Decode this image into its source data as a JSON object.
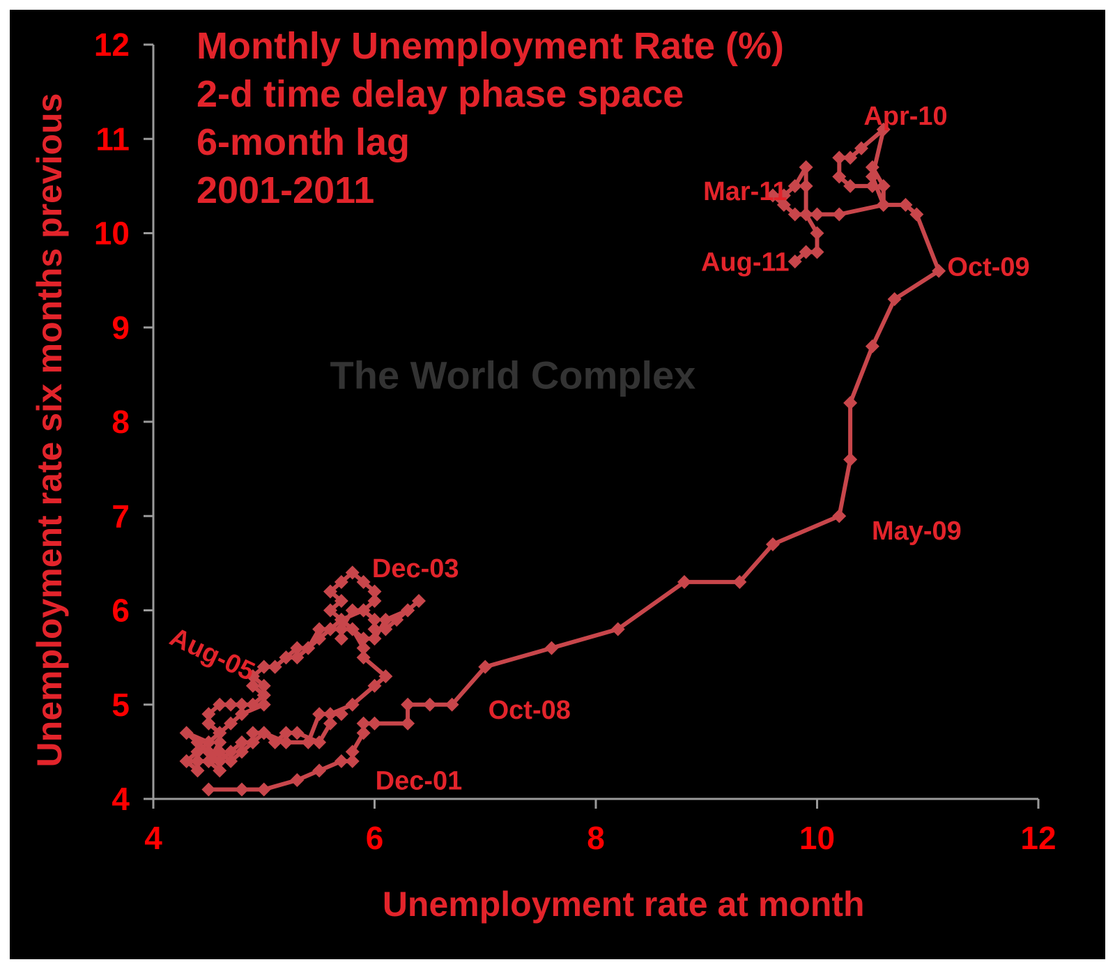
{
  "chart_data": {
    "type": "line",
    "title_lines": [
      "Monthly Unemployment Rate (%)",
      "2-d time delay phase space",
      "6-month lag",
      "2001-2011"
    ],
    "xlabel": "Unemployment rate at month",
    "ylabel": "Unemployment rate six months previous",
    "xlim": [
      4,
      12
    ],
    "ylim": [
      4,
      12
    ],
    "xticks": [
      "4",
      "6",
      "8",
      "10",
      "12"
    ],
    "yticks": [
      "4",
      "5",
      "6",
      "7",
      "8",
      "9",
      "10",
      "11",
      "12"
    ],
    "watermark": "The World Complex",
    "grid": false,
    "legend": "none",
    "colors": {
      "background": "#000000",
      "series": "#c8464b",
      "text": "#e3242b",
      "tick_text": "#ff0000",
      "axis": "#9a9a9a",
      "watermark": "#333333"
    },
    "series": [
      {
        "points": [
          [
            4.5,
            4.1
          ],
          [
            4.8,
            4.1
          ],
          [
            5.0,
            4.1
          ],
          [
            5.3,
            4.2
          ],
          [
            5.5,
            4.3
          ],
          [
            5.7,
            4.4
          ],
          [
            5.8,
            4.4
          ],
          [
            5.8,
            4.5
          ],
          [
            5.9,
            4.7
          ],
          [
            5.9,
            4.8
          ],
          [
            6.0,
            4.8
          ],
          [
            6.3,
            4.8
          ],
          [
            6.3,
            5.0
          ],
          [
            6.5,
            5.0
          ],
          [
            6.7,
            5.0
          ],
          [
            7.0,
            5.4
          ],
          [
            7.6,
            5.6
          ],
          [
            8.2,
            5.8
          ],
          [
            8.8,
            6.3
          ],
          [
            9.3,
            6.3
          ],
          [
            9.6,
            6.7
          ],
          [
            10.2,
            7.0
          ],
          [
            10.3,
            7.6
          ],
          [
            10.3,
            8.2
          ],
          [
            10.5,
            8.8
          ],
          [
            10.7,
            9.3
          ],
          [
            11.1,
            9.6
          ],
          [
            10.9,
            10.2
          ],
          [
            10.8,
            10.3
          ],
          [
            10.6,
            10.3
          ],
          [
            10.5,
            10.6
          ],
          [
            10.6,
            11.1
          ],
          [
            10.4,
            10.9
          ],
          [
            10.3,
            10.8
          ],
          [
            10.2,
            10.8
          ],
          [
            10.2,
            10.6
          ],
          [
            10.3,
            10.5
          ],
          [
            10.5,
            10.5
          ],
          [
            10.5,
            10.7
          ],
          [
            10.6,
            10.5
          ],
          [
            10.6,
            10.3
          ],
          [
            10.2,
            10.2
          ],
          [
            10.0,
            10.2
          ],
          [
            9.8,
            10.2
          ],
          [
            9.7,
            10.3
          ],
          [
            9.6,
            10.4
          ],
          [
            9.7,
            10.4
          ],
          [
            9.8,
            10.5
          ],
          [
            9.9,
            10.7
          ],
          [
            9.9,
            10.5
          ],
          [
            9.9,
            10.2
          ],
          [
            10.0,
            10.0
          ],
          [
            10.0,
            9.8
          ],
          [
            9.9,
            9.8
          ],
          [
            9.8,
            9.7
          ]
        ]
      },
      {
        "points": [
          [
            5.7,
            4.9
          ],
          [
            5.5,
            4.9
          ],
          [
            5.4,
            4.6
          ],
          [
            5.2,
            4.6
          ],
          [
            5.0,
            4.7
          ],
          [
            4.9,
            4.6
          ],
          [
            4.8,
            4.6
          ],
          [
            4.7,
            4.5
          ],
          [
            4.6,
            4.4
          ],
          [
            4.5,
            4.4
          ],
          [
            4.4,
            4.4
          ],
          [
            4.3,
            4.4
          ],
          [
            4.4,
            4.5
          ],
          [
            4.5,
            4.6
          ],
          [
            4.3,
            4.7
          ],
          [
            4.4,
            4.6
          ],
          [
            4.5,
            4.5
          ],
          [
            4.6,
            4.4
          ],
          [
            4.6,
            4.3
          ],
          [
            4.5,
            4.4
          ],
          [
            4.6,
            4.6
          ],
          [
            4.6,
            4.7
          ],
          [
            4.5,
            4.8
          ],
          [
            4.5,
            4.9
          ],
          [
            4.6,
            5.0
          ],
          [
            4.7,
            5.0
          ],
          [
            4.8,
            5.0
          ],
          [
            4.9,
            5.0
          ],
          [
            5.0,
            5.1
          ],
          [
            5.0,
            5.2
          ],
          [
            4.9,
            5.3
          ],
          [
            5.0,
            5.4
          ],
          [
            5.1,
            5.4
          ],
          [
            5.2,
            5.5
          ],
          [
            5.3,
            5.6
          ],
          [
            5.4,
            5.6
          ],
          [
            5.5,
            5.7
          ],
          [
            5.6,
            5.8
          ],
          [
            5.7,
            5.8
          ],
          [
            5.8,
            6.0
          ],
          [
            5.9,
            6.0
          ],
          [
            6.0,
            5.9
          ],
          [
            6.0,
            5.8
          ],
          [
            6.1,
            5.8
          ],
          [
            6.2,
            5.9
          ],
          [
            6.3,
            6.0
          ],
          [
            6.4,
            6.1
          ],
          [
            6.3,
            6.0
          ],
          [
            6.1,
            5.9
          ],
          [
            6.0,
            5.7
          ],
          [
            5.9,
            5.7
          ],
          [
            5.8,
            5.8
          ],
          [
            5.7,
            5.9
          ],
          [
            5.6,
            6.0
          ],
          [
            5.7,
            6.1
          ],
          [
            5.6,
            6.2
          ],
          [
            5.7,
            6.3
          ],
          [
            5.8,
            6.4
          ],
          [
            5.9,
            6.3
          ],
          [
            6.0,
            6.2
          ],
          [
            6.0,
            6.1
          ],
          [
            5.9,
            6.0
          ],
          [
            5.7,
            5.9
          ],
          [
            5.6,
            5.8
          ],
          [
            5.5,
            5.8
          ],
          [
            5.4,
            5.6
          ],
          [
            5.3,
            5.5
          ],
          [
            5.2,
            5.5
          ],
          [
            5.1,
            5.4
          ],
          [
            5.0,
            5.4
          ],
          [
            4.9,
            5.3
          ],
          [
            4.9,
            5.2
          ],
          [
            5.0,
            5.1
          ],
          [
            5.0,
            5.0
          ],
          [
            4.8,
            4.9
          ],
          [
            4.7,
            4.8
          ],
          [
            4.6,
            4.7
          ],
          [
            4.5,
            4.6
          ],
          [
            4.4,
            4.5
          ],
          [
            4.3,
            4.4
          ],
          [
            4.4,
            4.3
          ],
          [
            4.4,
            4.4
          ],
          [
            4.5,
            4.4
          ],
          [
            4.6,
            4.5
          ],
          [
            4.7,
            4.4
          ],
          [
            4.8,
            4.5
          ],
          [
            4.9,
            4.6
          ],
          [
            4.9,
            4.7
          ],
          [
            5.0,
            4.7
          ],
          [
            5.1,
            4.6
          ],
          [
            5.2,
            4.7
          ],
          [
            5.3,
            4.7
          ],
          [
            5.5,
            4.6
          ],
          [
            5.6,
            4.8
          ],
          [
            5.6,
            4.9
          ],
          [
            5.8,
            5.0
          ],
          [
            6.0,
            5.2
          ],
          [
            6.1,
            5.3
          ],
          [
            5.9,
            5.5
          ],
          [
            5.9,
            5.6
          ],
          [
            5.8,
            5.8
          ],
          [
            5.7,
            5.8
          ],
          [
            5.7,
            5.7
          ]
        ]
      }
    ],
    "annotations": [
      {
        "text": "Apr-10",
        "x": 10.8,
        "y": 11.15
      },
      {
        "text": "Mar-11",
        "x": 9.35,
        "y": 10.35
      },
      {
        "text": "Aug-11",
        "x": 9.35,
        "y": 9.6
      },
      {
        "text": "Oct-09",
        "x": 11.55,
        "y": 9.55
      },
      {
        "text": "May-09",
        "x": 10.9,
        "y": 6.75
      },
      {
        "text": "Dec-03",
        "x": 6.37,
        "y": 6.35
      },
      {
        "text": "Aug-05",
        "x": 4.5,
        "y": 5.45,
        "rotate": 25
      },
      {
        "text": "Oct-08",
        "x": 7.4,
        "y": 4.85
      },
      {
        "text": "Dec-01",
        "x": 6.4,
        "y": 4.1
      }
    ]
  }
}
